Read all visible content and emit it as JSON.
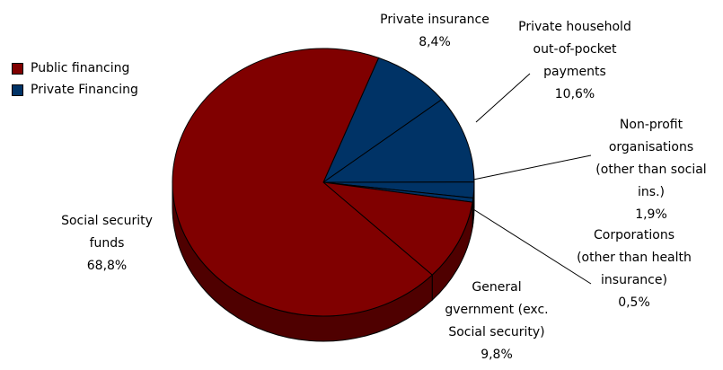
{
  "chart_data": {
    "type": "pie",
    "title": "",
    "style": "3d-tilted",
    "legend_position": "top-left",
    "legend": [
      {
        "name": "Public financing",
        "color": "#800000"
      },
      {
        "name": "Private Financing",
        "color": "#003366"
      }
    ],
    "slices": [
      {
        "label_lines": [
          "Private insurance"
        ],
        "value_text": "8,4%",
        "value": 8.4,
        "group": "Private Financing",
        "color": "#003366"
      },
      {
        "label_lines": [
          "Private household",
          "out-of-pocket",
          "payments"
        ],
        "value_text": "10,6%",
        "value": 10.6,
        "group": "Private Financing",
        "color": "#003366"
      },
      {
        "label_lines": [
          "Non-profit",
          "organisations",
          "(other than social",
          "ins.)"
        ],
        "value_text": "1,9%",
        "value": 1.9,
        "group": "Private Financing",
        "color": "#003366"
      },
      {
        "label_lines": [
          "Corporations",
          "(other than health",
          "insurance)"
        ],
        "value_text": "0,5%",
        "value": 0.5,
        "group": "Private Financing",
        "color": "#003366"
      },
      {
        "label_lines": [
          "General",
          "gvernment (exc.",
          "Social security)"
        ],
        "value_text": "9,8%",
        "value": 9.8,
        "group": "Public financing",
        "color": "#800000"
      },
      {
        "label_lines": [
          "Social security",
          "funds"
        ],
        "value_text": "68,8%",
        "value": 68.8,
        "group": "Public financing",
        "color": "#800000"
      }
    ]
  }
}
